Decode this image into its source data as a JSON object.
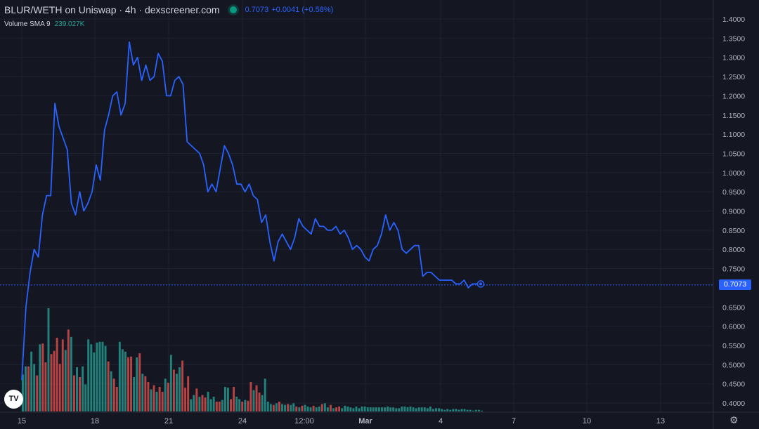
{
  "header": {
    "title": "BLUR/WETH on Uniswap · 4h · dexscreener.com",
    "price": "0.7073",
    "change": "+0.0041 (+0.58%)"
  },
  "indicator": {
    "label": "Volume SMA 9",
    "value": "239.027K"
  },
  "price_badge": "0.7073",
  "logo_text": "TV",
  "colors": {
    "line": "#2962ff",
    "vol_up": "#26a69a",
    "vol_down": "#ef5350",
    "bg": "#141722",
    "grid": "#1e2230"
  },
  "chart_data": {
    "type": "line",
    "title": "BLUR/WETH on Uniswap · 4h · dexscreener.com",
    "ylim": [
      0.37,
      1.43
    ],
    "y_ticks": [
      "1.4000",
      "1.3500",
      "1.3000",
      "1.2500",
      "1.2000",
      "1.1500",
      "1.1000",
      "1.0500",
      "1.0000",
      "0.9500",
      "0.9000",
      "0.8500",
      "0.8000",
      "0.7500",
      "0.6500",
      "0.6000",
      "0.5500",
      "0.5000",
      "0.4500",
      "0.4000"
    ],
    "x_ticks": [
      "15",
      "18",
      "21",
      "24",
      "12:00",
      "Mar",
      "4",
      "7",
      "10",
      "13"
    ],
    "price_line_value": 0.7073,
    "series": [
      {
        "name": "BLUR/WETH",
        "values": [
          0.46,
          0.65,
          0.74,
          0.8,
          0.78,
          0.89,
          0.94,
          0.94,
          1.18,
          1.12,
          1.09,
          1.06,
          0.92,
          0.89,
          0.95,
          0.9,
          0.92,
          0.95,
          1.02,
          0.98,
          1.11,
          1.15,
          1.2,
          1.21,
          1.15,
          1.18,
          1.34,
          1.28,
          1.3,
          1.24,
          1.28,
          1.24,
          1.25,
          1.31,
          1.29,
          1.2,
          1.2,
          1.24,
          1.25,
          1.23,
          1.08,
          1.07,
          1.06,
          1.05,
          1.02,
          0.95,
          0.97,
          0.95,
          1.01,
          1.07,
          1.05,
          1.02,
          0.97,
          0.97,
          0.95,
          0.97,
          0.94,
          0.93,
          0.87,
          0.89,
          0.82,
          0.77,
          0.82,
          0.84,
          0.82,
          0.8,
          0.83,
          0.88,
          0.86,
          0.85,
          0.84,
          0.88,
          0.86,
          0.86,
          0.85,
          0.85,
          0.86,
          0.84,
          0.85,
          0.83,
          0.8,
          0.81,
          0.8,
          0.78,
          0.77,
          0.8,
          0.81,
          0.84,
          0.89,
          0.85,
          0.87,
          0.85,
          0.8,
          0.79,
          0.8,
          0.81,
          0.81,
          0.73,
          0.74,
          0.74,
          0.73,
          0.72,
          0.72,
          0.72,
          0.72,
          0.71,
          0.71,
          0.72,
          0.7,
          0.71,
          0.71,
          0.71
        ]
      }
    ],
    "volume": {
      "values": [
        0.45,
        0.55,
        0.55,
        0.73,
        0.58,
        0.44,
        0.82,
        0.83,
        0.6,
        1.26,
        0.7,
        0.74,
        0.9,
        0.58,
        0.88,
        0.75,
        1.0,
        0.91,
        0.44,
        0.54,
        0.42,
        0.55,
        0.33,
        0.88,
        0.82,
        0.72,
        0.84,
        0.85,
        0.85,
        0.8,
        0.61,
        0.49,
        0.4,
        0.3,
        0.85,
        0.76,
        0.73,
        0.66,
        0.67,
        0.42,
        0.66,
        0.71,
        0.46,
        0.43,
        0.36,
        0.27,
        0.32,
        0.24,
        0.3,
        0.24,
        0.4,
        0.35,
        0.69,
        0.51,
        0.46,
        0.54,
        0.62,
        0.29,
        0.43,
        0.15,
        0.2,
        0.28,
        0.18,
        0.2,
        0.17,
        0.24,
        0.15,
        0.18,
        0.12,
        0.12,
        0.14,
        0.3,
        0.29,
        0.15,
        0.3,
        0.18,
        0.15,
        0.12,
        0.14,
        0.13,
        0.36,
        0.26,
        0.32,
        0.23,
        0.2,
        0.4,
        0.12,
        0.09,
        0.08,
        0.1,
        0.12,
        0.09,
        0.08,
        0.09,
        0.08,
        0.1,
        0.06,
        0.05,
        0.07,
        0.08,
        0.06,
        0.05,
        0.07,
        0.05,
        0.06,
        0.09,
        0.1,
        0.05,
        0.08,
        0.04,
        0.05,
        0.06,
        0.04,
        0.07,
        0.06,
        0.05,
        0.04,
        0.06,
        0.04,
        0.06,
        0.06,
        0.05,
        0.05,
        0.05,
        0.05,
        0.05,
        0.05,
        0.05,
        0.06,
        0.05,
        0.05,
        0.04,
        0.04,
        0.06,
        0.06,
        0.05,
        0.06,
        0.05,
        0.04,
        0.05,
        0.05,
        0.05,
        0.04,
        0.06,
        0.03,
        0.04,
        0.04,
        0.03,
        0.02,
        0.03,
        0.02,
        0.03,
        0.03,
        0.02,
        0.03,
        0.03,
        0.02,
        0.02,
        0.01,
        0.02,
        0.02,
        0.01
      ],
      "up": [
        1,
        1,
        0,
        1,
        1,
        0,
        1,
        0,
        0,
        1,
        0,
        0,
        0,
        0,
        0,
        1,
        0,
        1,
        0,
        1,
        0,
        1,
        1,
        1,
        1,
        1,
        1,
        1,
        1,
        1,
        0,
        1,
        0,
        0,
        1,
        1,
        1,
        0,
        0,
        1,
        1,
        0,
        1,
        0,
        0,
        1,
        0,
        1,
        0,
        0,
        1,
        0,
        1,
        0,
        1,
        1,
        0,
        0,
        0,
        1,
        1,
        0,
        1,
        0,
        0,
        1,
        1,
        1,
        0,
        0,
        1,
        1,
        1,
        0,
        0,
        1,
        1,
        0,
        1,
        0,
        0,
        1,
        0,
        0,
        1,
        1,
        1,
        1,
        0,
        1,
        0,
        1,
        1,
        0,
        1,
        1,
        0,
        1,
        0,
        1,
        1,
        1,
        0,
        1,
        1,
        0,
        1,
        1,
        0,
        1,
        0,
        0,
        1,
        1,
        1,
        1,
        1,
        1,
        1,
        1,
        1,
        1,
        1,
        1,
        1,
        1,
        1,
        1,
        1,
        1,
        1,
        1,
        1,
        1,
        1,
        1,
        1,
        1,
        1,
        1,
        1,
        1,
        1,
        1,
        1,
        1,
        1,
        1,
        1,
        1,
        1,
        1,
        1,
        1,
        1,
        1,
        1,
        1,
        1,
        1,
        1,
        1
      ]
    }
  }
}
